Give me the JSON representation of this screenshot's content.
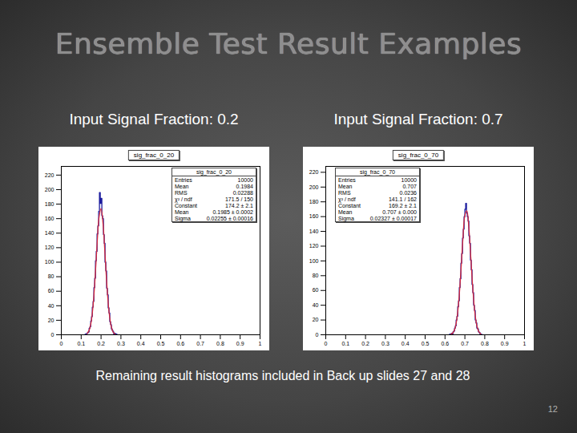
{
  "slide": {
    "title": "Ensemble Test Result Examples",
    "caption": "Remaining result histograms included in Back up slides 27 and 28",
    "page": "12"
  },
  "chart_data": [
    {
      "type": "histogram",
      "subtitle": "Input Signal Fraction: 0.2",
      "title": "sig_frac_0_20",
      "bins": [
        0.12,
        0.124,
        0.128,
        0.132,
        0.136,
        0.14,
        0.144,
        0.148,
        0.152,
        0.156,
        0.16,
        0.164,
        0.168,
        0.172,
        0.176,
        0.18,
        0.184,
        0.188,
        0.192,
        0.196,
        0.2,
        0.204,
        0.208,
        0.212,
        0.216,
        0.22,
        0.224,
        0.228,
        0.232,
        0.236,
        0.24,
        0.244,
        0.248,
        0.252,
        0.256,
        0.26,
        0.264,
        0.268,
        0.272,
        0.276,
        0.28
      ],
      "values": [
        1,
        0,
        2,
        3,
        4,
        9,
        11,
        19,
        25,
        38,
        46,
        65,
        78,
        102,
        115,
        139,
        150,
        170,
        196,
        181,
        188,
        164,
        160,
        138,
        126,
        100,
        88,
        64,
        55,
        37,
        30,
        18,
        14,
        8,
        6,
        4,
        1,
        2,
        0,
        1
      ],
      "color": "#1c1c9e",
      "fit": {
        "x": [
          0.13,
          0.14,
          0.15,
          0.16,
          0.17,
          0.18,
          0.19,
          0.2,
          0.21,
          0.22,
          0.23,
          0.24,
          0.25,
          0.26,
          0.27
        ],
        "values": [
          1.7,
          6.0,
          17.2,
          40.6,
          78.3,
          124.5,
          162.3,
          173.8,
          152.9,
          110.6,
          65.6,
          32.0,
          12.8,
          4.2,
          1.1
        ],
        "color": "#d42a3c"
      },
      "xlim": [
        0,
        1
      ],
      "xticks": [
        0,
        0.1,
        0.2,
        0.3,
        0.4,
        0.5,
        0.6,
        0.7,
        0.8,
        0.9,
        1
      ],
      "ylim": [
        0,
        232
      ],
      "yticks": [
        0,
        20,
        40,
        60,
        80,
        100,
        120,
        140,
        160,
        180,
        200,
        220
      ],
      "stats": {
        "title": "sig_frac_0_20",
        "rows": [
          [
            "Entries",
            "10000"
          ],
          [
            "Mean",
            "0.1984"
          ],
          [
            "RMS",
            "0.02288"
          ],
          [
            "χ² / ndf",
            "171.5 / 150"
          ],
          [
            "Constant",
            "174.2 ± 2.1"
          ],
          [
            "Mean",
            "0.1985 ± 0.0002"
          ],
          [
            "Sigma",
            "0.02255 ± 0.00016"
          ]
        ]
      }
    },
    {
      "type": "histogram",
      "subtitle": "Input Signal Fraction: 0.7",
      "title": "sig_frac_0_70",
      "bins": [
        0.62,
        0.624,
        0.628,
        0.632,
        0.636,
        0.64,
        0.644,
        0.648,
        0.652,
        0.656,
        0.66,
        0.664,
        0.668,
        0.672,
        0.676,
        0.68,
        0.684,
        0.688,
        0.692,
        0.696,
        0.7,
        0.704,
        0.708,
        0.712,
        0.716,
        0.72,
        0.724,
        0.728,
        0.732,
        0.736,
        0.74,
        0.744,
        0.748,
        0.752,
        0.756,
        0.76,
        0.764,
        0.768,
        0.772,
        0.776,
        0.78,
        0.784,
        0.788
      ],
      "values": [
        0,
        1,
        0,
        2,
        1,
        4,
        5,
        9,
        12,
        20,
        25,
        38,
        46,
        64,
        76,
        97,
        110,
        131,
        143,
        160,
        170,
        178,
        165,
        160,
        154,
        134,
        124,
        101,
        88,
        68,
        57,
        40,
        33,
        20,
        16,
        9,
        8,
        4,
        3,
        1,
        1,
        0
      ],
      "color": "#1c1c9e",
      "fit": {
        "x": [
          0.63,
          0.64,
          0.65,
          0.66,
          0.67,
          0.68,
          0.69,
          0.7,
          0.71,
          0.72,
          0.73,
          0.74,
          0.75,
          0.76,
          0.77,
          0.78
        ],
        "values": [
          0.7,
          2.7,
          8.4,
          22.0,
          47.8,
          86.3,
          129.6,
          161.7,
          167.8,
          144.7,
          103.9,
          61.9,
          30.7,
          12.6,
          4.3,
          1.2
        ],
        "color": "#d42a3c"
      },
      "xlim": [
        0,
        1
      ],
      "xticks": [
        0,
        0.1,
        0.2,
        0.3,
        0.4,
        0.5,
        0.6,
        0.7,
        0.8,
        0.9,
        1
      ],
      "ylim": [
        0,
        228
      ],
      "yticks": [
        0,
        20,
        40,
        60,
        80,
        100,
        120,
        140,
        160,
        180,
        200,
        220
      ],
      "stats": {
        "title": "sig_frac_0_70",
        "rows": [
          [
            "Entries",
            "10000"
          ],
          [
            "Mean",
            "0.707"
          ],
          [
            "RMS",
            "0.0236"
          ],
          [
            "χ² / ndf",
            "141.1 / 162"
          ],
          [
            "Constant",
            "169.2 ± 2.1"
          ],
          [
            "Mean",
            "0.707 ± 0.000"
          ],
          [
            "Sigma",
            "0.02327 ± 0.00017"
          ]
        ]
      }
    }
  ]
}
